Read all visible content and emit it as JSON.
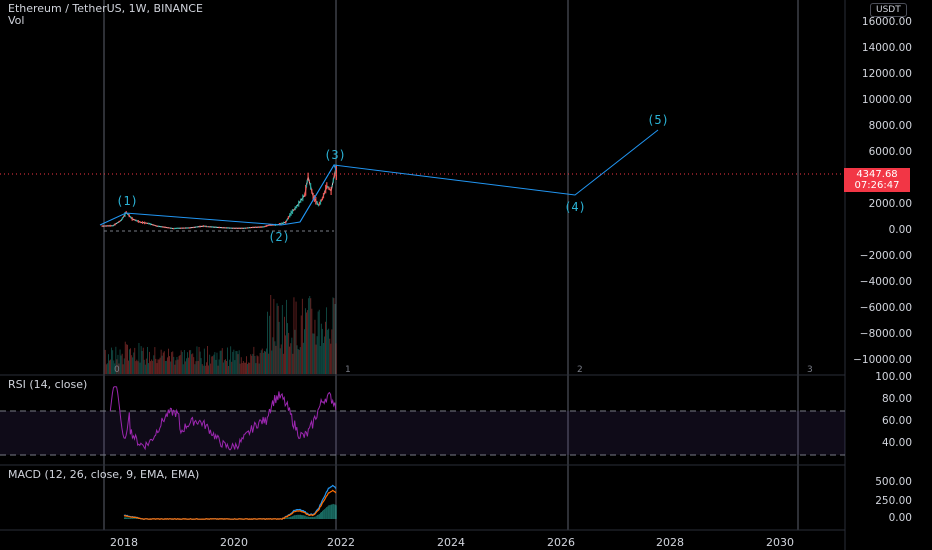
{
  "header": {
    "title": "Ethereum / TetherUS, 1W, BINANCE",
    "vol_label": "Vol",
    "currency": "USDT"
  },
  "price_scale": {
    "ticks": [
      "16000.00",
      "14000.00",
      "12000.00",
      "10000.00",
      "8000.00",
      "6000.00",
      "2000.00",
      "0.00",
      "−2000.00",
      "−4000.00",
      "−6000.00",
      "−8000.00",
      "−10000.00"
    ]
  },
  "last_price": {
    "value": "4347.68",
    "countdown": "07:26:47"
  },
  "rsi": {
    "label": "RSI (14, close)",
    "ticks": [
      "100.00",
      "80.00",
      "60.00",
      "40.00"
    ]
  },
  "macd": {
    "label": "MACD (12, 26, close, 9, EMA, EMA)",
    "ticks": [
      "500.00",
      "250.00",
      "0.00"
    ]
  },
  "time_axis": {
    "labels": [
      "2018",
      "2020",
      "2022",
      "2024",
      "2026",
      "2028",
      "2030"
    ]
  },
  "cycle_labels": [
    "0",
    "1",
    "2",
    "3"
  ],
  "chart_data": {
    "type": "line",
    "x_axis": {
      "type": "time",
      "range": [
        "2017-08",
        "2031-02"
      ]
    },
    "y_axis": {
      "range": [
        -11000,
        17500
      ]
    },
    "wave_labels": [
      {
        "label": "(1)",
        "x": "2018-01",
        "y": 1400
      },
      {
        "label": "(2)",
        "x": "2020-12",
        "y": 400
      },
      {
        "label": "(3)",
        "x": "2021-11",
        "y": 4800
      },
      {
        "label": "(4)",
        "x": "2026-04",
        "y": 2800
      },
      {
        "label": "(5)",
        "x": "2027-10",
        "y": 7800
      }
    ],
    "series": [
      {
        "values": [
          [
            2017.6,
            300
          ],
          [
            2017.8,
            330
          ],
          [
            2017.95,
            750
          ],
          [
            2018.04,
            1350
          ],
          [
            2018.15,
            850
          ],
          [
            2018.3,
            600
          ],
          [
            2018.45,
            500
          ],
          [
            2018.6,
            300
          ],
          [
            2018.75,
            210
          ],
          [
            2018.9,
            110
          ],
          [
            2019.0,
            140
          ],
          [
            2019.2,
            160
          ],
          [
            2019.45,
            300
          ],
          [
            2019.55,
            250
          ],
          [
            2019.8,
            180
          ],
          [
            2020.0,
            140
          ],
          [
            2020.2,
            130
          ],
          [
            2020.35,
            200
          ],
          [
            2020.55,
            240
          ],
          [
            2020.65,
            380
          ],
          [
            2020.8,
            400
          ],
          [
            2020.95,
            600
          ],
          [
            2021.05,
            1300
          ],
          [
            2021.15,
            1800
          ],
          [
            2021.3,
            2700
          ],
          [
            2021.36,
            4100
          ],
          [
            2021.45,
            2600
          ],
          [
            2021.55,
            1900
          ],
          [
            2021.62,
            2400
          ],
          [
            2021.7,
            3400
          ],
          [
            2021.78,
            3000
          ],
          [
            2021.86,
            4600
          ],
          [
            2021.88,
            4347.68
          ]
        ]
      }
    ],
    "gridlines": true
  },
  "colors": {
    "wave_line": "#2196f3",
    "wave_text": "#2bb3d6",
    "rsi_line": "#9c27b0",
    "macd_line": "#2196f3",
    "signal_line": "#ff6d00",
    "last_price": "#f23645",
    "cycle_line": "#787b86"
  }
}
